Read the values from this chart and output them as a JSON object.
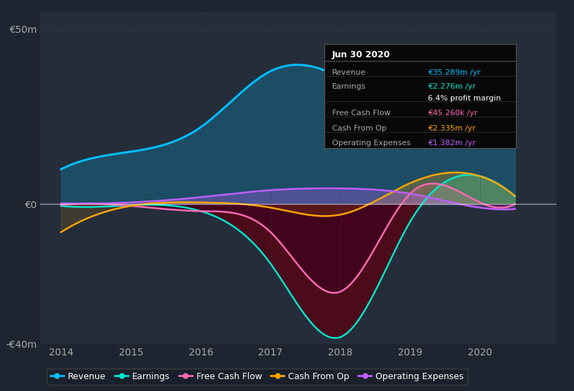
{
  "bg_color": "#1e2530",
  "plot_bg_color": "#252d3a",
  "grid_color": "#2e3a4a",
  "years": [
    2014,
    2015,
    2016,
    2017,
    2018,
    2019,
    2020,
    2020.5
  ],
  "revenue": [
    10,
    15,
    22,
    38,
    36,
    28,
    42,
    35
  ],
  "earnings": [
    -0.5,
    -0.3,
    -2,
    -17,
    -38,
    -5,
    8,
    2.276
  ],
  "free_cash": [
    -0.2,
    -0.5,
    -2,
    -8,
    -25,
    3,
    0.5,
    0.045
  ],
  "cash_from_op": [
    -8,
    -0.5,
    0.5,
    -1,
    -3,
    6,
    8,
    2.335
  ],
  "op_expenses": [
    0.2,
    0.5,
    2,
    4,
    4.5,
    3,
    -1,
    -1.382
  ],
  "revenue_color": "#00bfff",
  "earnings_color": "#00e5cc",
  "free_cash_color": "#ff69b4",
  "cash_from_op_color": "#ffa500",
  "op_expenses_color": "#bf5fff",
  "ylim": [
    -40,
    55
  ],
  "yticks": [
    -40,
    0,
    50
  ],
  "ytick_labels": [
    "-€40m",
    "€0",
    "€50m"
  ],
  "xticks": [
    2014,
    2015,
    2016,
    2017,
    2018,
    2019,
    2020
  ],
  "tooltip": {
    "title": "Jun 30 2020",
    "rows": [
      {
        "label": "Revenue",
        "value": "€35.289m /yr",
        "color": "#00bfff"
      },
      {
        "label": "Earnings",
        "value": "€2.276m /yr",
        "color": "#00e5cc"
      },
      {
        "label": "",
        "value": "6.4% profit margin",
        "color": "#ffffff"
      },
      {
        "label": "Free Cash Flow",
        "value": "€45.260k /yr",
        "color": "#ff69b4"
      },
      {
        "label": "Cash From Op",
        "value": "€2.335m /yr",
        "color": "#ffa500"
      },
      {
        "label": "Operating Expenses",
        "value": "€1.382m /yr",
        "color": "#bf5fff"
      }
    ]
  },
  "legend": [
    {
      "label": "Revenue",
      "color": "#00bfff"
    },
    {
      "label": "Earnings",
      "color": "#00e5cc"
    },
    {
      "label": "Free Cash Flow",
      "color": "#ff69b4"
    },
    {
      "label": "Cash From Op",
      "color": "#ffa500"
    },
    {
      "label": "Operating Expenses",
      "color": "#bf5fff"
    }
  ]
}
